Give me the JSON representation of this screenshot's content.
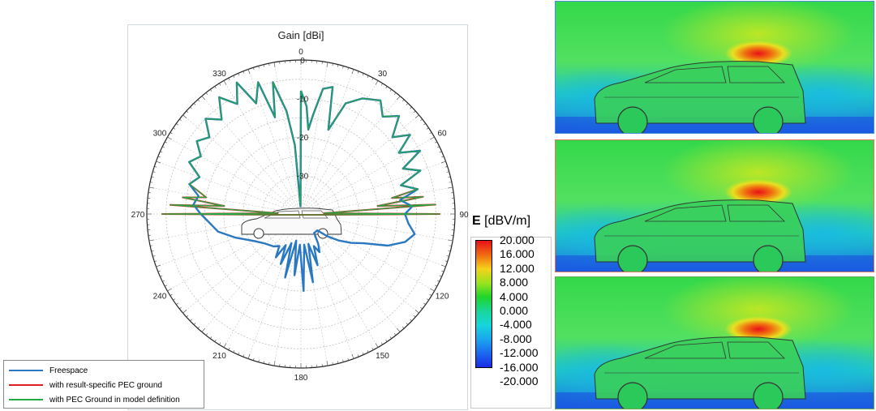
{
  "chart_data": {
    "type": "polar",
    "title": "Gain [dBi]",
    "radial_ticks": [
      "0",
      "-10",
      "-20",
      "-30"
    ],
    "radial_range": [
      -40,
      0
    ],
    "angular_ticks": [
      "0",
      "30",
      "60",
      "90",
      "120",
      "150",
      "180",
      "210",
      "240",
      "270",
      "300",
      "330"
    ],
    "grid": true,
    "legend_position": "bottom-left",
    "series": [
      {
        "name": "Freespace",
        "color": "#2a78c2",
        "points": [
          [
            0,
            -8
          ],
          [
            3,
            -12
          ],
          [
            5,
            -18
          ],
          [
            7,
            -14
          ],
          [
            10,
            -7
          ],
          [
            14,
            -6
          ],
          [
            18,
            -17
          ],
          [
            22,
            -9
          ],
          [
            28,
            -6
          ],
          [
            35,
            -4
          ],
          [
            40,
            -7
          ],
          [
            45,
            -4
          ],
          [
            50,
            -9
          ],
          [
            54,
            -5
          ],
          [
            58,
            -10
          ],
          [
            62,
            -5
          ],
          [
            66,
            -11
          ],
          [
            70,
            -7
          ],
          [
            74,
            -13
          ],
          [
            78,
            -9
          ],
          [
            82,
            -14
          ],
          [
            86,
            -11
          ],
          [
            90,
            -13
          ],
          [
            95,
            -12
          ],
          [
            100,
            -10
          ],
          [
            105,
            -12
          ],
          [
            110,
            -16
          ],
          [
            115,
            -22
          ],
          [
            120,
            -25
          ],
          [
            125,
            -28
          ],
          [
            130,
            -31
          ],
          [
            135,
            -34
          ],
          [
            140,
            -34
          ],
          [
            145,
            -34
          ],
          [
            150,
            -31
          ],
          [
            154,
            -29
          ],
          [
            158,
            -31
          ],
          [
            162,
            -26
          ],
          [
            166,
            -32
          ],
          [
            170,
            -22
          ],
          [
            174,
            -32
          ],
          [
            178,
            -20
          ],
          [
            182,
            -32
          ],
          [
            186,
            -24
          ],
          [
            190,
            -33
          ],
          [
            194,
            -23
          ],
          [
            198,
            -32
          ],
          [
            202,
            -26
          ],
          [
            206,
            -31
          ],
          [
            210,
            -27
          ],
          [
            214,
            -30
          ],
          [
            220,
            -29
          ],
          [
            230,
            -28
          ],
          [
            240,
            -26
          ],
          [
            250,
            -22
          ],
          [
            258,
            -18
          ],
          [
            265,
            -16
          ],
          [
            270,
            -14
          ],
          [
            275,
            -12
          ],
          [
            280,
            -13
          ],
          [
            285,
            -10
          ],
          [
            290,
            -12
          ],
          [
            295,
            -8
          ],
          [
            300,
            -10
          ],
          [
            305,
            -7
          ],
          [
            310,
            -9
          ],
          [
            315,
            -5
          ],
          [
            320,
            -8
          ],
          [
            325,
            -3
          ],
          [
            330,
            -7
          ],
          [
            334,
            -2
          ],
          [
            338,
            -9
          ],
          [
            342,
            -4
          ],
          [
            345,
            -14
          ],
          [
            348,
            -5
          ],
          [
            352,
            -13
          ],
          [
            355,
            -22
          ],
          [
            357,
            -38
          ],
          [
            360,
            -8
          ]
        ]
      },
      {
        "name": "with result-specific PEC ground",
        "color": "#e02020",
        "points": [
          [
            0,
            -8
          ],
          [
            3,
            -12
          ],
          [
            5,
            -18
          ],
          [
            7,
            -14
          ],
          [
            10,
            -7
          ],
          [
            14,
            -6
          ],
          [
            18,
            -17
          ],
          [
            22,
            -9
          ],
          [
            28,
            -6
          ],
          [
            35,
            -4
          ],
          [
            40,
            -7
          ],
          [
            45,
            -4
          ],
          [
            50,
            -9
          ],
          [
            54,
            -5
          ],
          [
            58,
            -10
          ],
          [
            62,
            -5
          ],
          [
            66,
            -11
          ],
          [
            70,
            -7
          ],
          [
            74,
            -13
          ],
          [
            78,
            -9
          ],
          [
            80,
            -16
          ],
          [
            82,
            -8
          ],
          [
            84,
            -20
          ],
          [
            86,
            -5
          ],
          [
            88,
            -34
          ],
          [
            90,
            -4
          ],
          [
            92,
            -34
          ],
          [
            268,
            -34
          ],
          [
            270,
            -4
          ],
          [
            272,
            -34
          ],
          [
            274,
            -6
          ],
          [
            276,
            -20
          ],
          [
            278,
            -9
          ],
          [
            280,
            -15
          ],
          [
            285,
            -10
          ],
          [
            290,
            -12
          ],
          [
            295,
            -8
          ],
          [
            300,
            -10
          ],
          [
            305,
            -7
          ],
          [
            310,
            -9
          ],
          [
            315,
            -5
          ],
          [
            320,
            -8
          ],
          [
            325,
            -3
          ],
          [
            330,
            -7
          ],
          [
            334,
            -2
          ],
          [
            338,
            -9
          ],
          [
            342,
            -4
          ],
          [
            345,
            -14
          ],
          [
            348,
            -5
          ],
          [
            352,
            -13
          ],
          [
            355,
            -22
          ],
          [
            357,
            -38
          ],
          [
            360,
            -8
          ]
        ]
      },
      {
        "name": "with PEC Ground in model definition",
        "color": "#22aa44",
        "points": [
          [
            0,
            -8
          ],
          [
            3,
            -12
          ],
          [
            5,
            -18
          ],
          [
            7,
            -14
          ],
          [
            10,
            -7
          ],
          [
            14,
            -6
          ],
          [
            18,
            -17
          ],
          [
            22,
            -9
          ],
          [
            28,
            -6
          ],
          [
            35,
            -4
          ],
          [
            40,
            -7
          ],
          [
            45,
            -4
          ],
          [
            50,
            -9
          ],
          [
            54,
            -5
          ],
          [
            58,
            -10
          ],
          [
            62,
            -5
          ],
          [
            66,
            -11
          ],
          [
            70,
            -7
          ],
          [
            74,
            -13
          ],
          [
            78,
            -9
          ],
          [
            80,
            -16
          ],
          [
            82,
            -8
          ],
          [
            84,
            -20
          ],
          [
            86,
            -5
          ],
          [
            88,
            -34
          ],
          [
            90,
            -4
          ],
          [
            92,
            -34
          ],
          [
            268,
            -34
          ],
          [
            270,
            -4
          ],
          [
            272,
            -34
          ],
          [
            274,
            -6
          ],
          [
            276,
            -20
          ],
          [
            278,
            -9
          ],
          [
            280,
            -15
          ],
          [
            285,
            -10
          ],
          [
            290,
            -12
          ],
          [
            295,
            -8
          ],
          [
            300,
            -10
          ],
          [
            305,
            -7
          ],
          [
            310,
            -9
          ],
          [
            315,
            -5
          ],
          [
            320,
            -8
          ],
          [
            325,
            -3
          ],
          [
            330,
            -7
          ],
          [
            334,
            -2
          ],
          [
            338,
            -9
          ],
          [
            342,
            -4
          ],
          [
            345,
            -14
          ],
          [
            348,
            -5
          ],
          [
            352,
            -13
          ],
          [
            355,
            -22
          ],
          [
            357,
            -38
          ],
          [
            360,
            -8
          ]
        ]
      }
    ]
  },
  "colorbar": {
    "quantity": "E",
    "unit": "[dBV/m]",
    "ticks": [
      "20.000",
      "16.000",
      "12.000",
      "8.000",
      "4.000",
      "0.000",
      "-4.000",
      "-8.000",
      "-12.000",
      "-16.000",
      "-20.000"
    ],
    "range": [
      -20,
      20
    ],
    "colors": [
      "#e8101a",
      "#f06a10",
      "#f5d21a",
      "#9be41e",
      "#1fd52a",
      "#18d69a",
      "#16d6dc",
      "#1aa6ee",
      "#1c6aee",
      "#1a2ae6"
    ]
  },
  "field_panels": [
    {
      "border_color": "#4a8fd8"
    },
    {
      "border_color": "#e07a5f"
    },
    {
      "border_color": "#6aa84f"
    }
  ]
}
